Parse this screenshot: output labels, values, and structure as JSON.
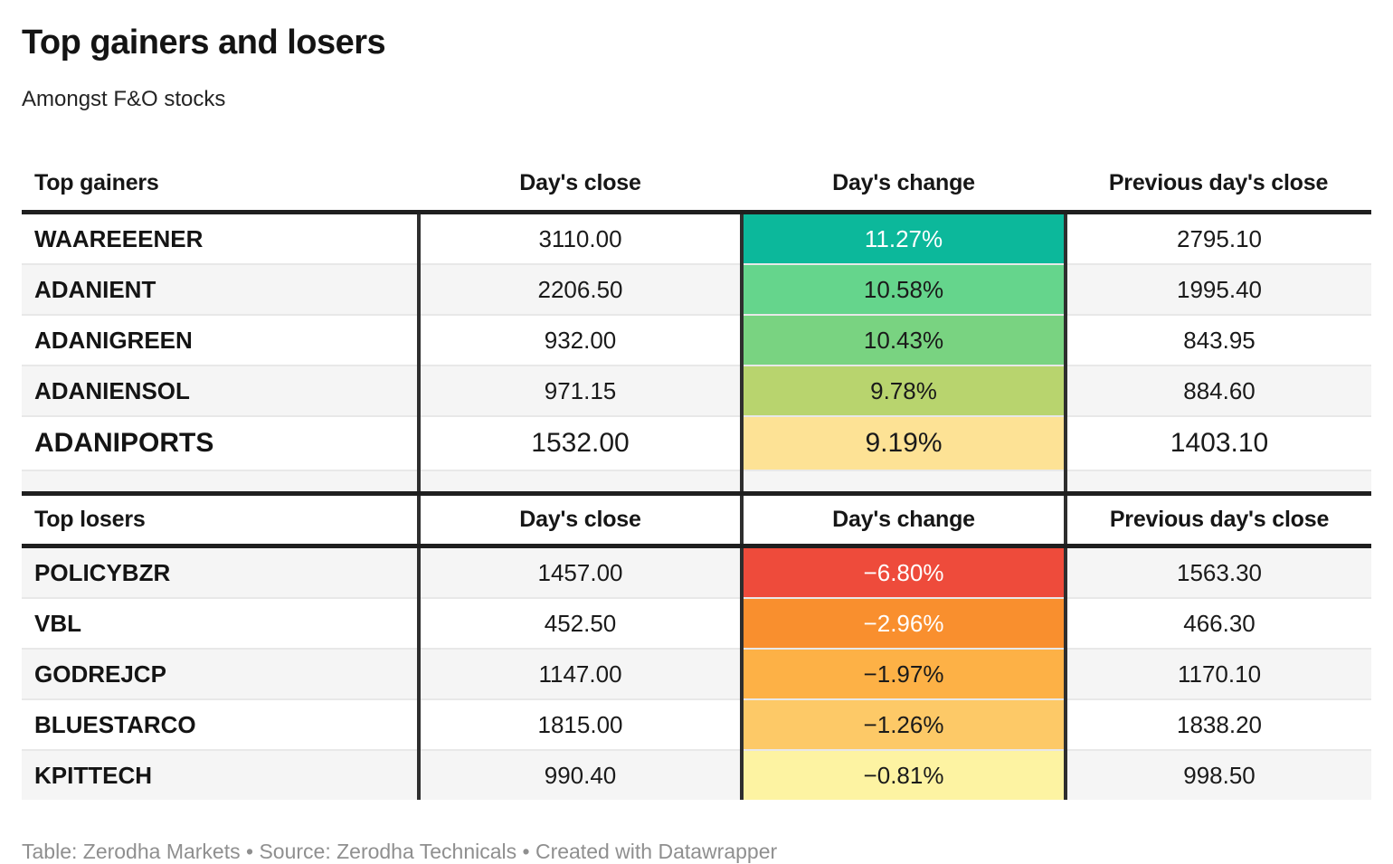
{
  "title": "Top gainers and losers",
  "subtitle": "Amongst F&O stocks",
  "footer": "Table: Zerodha Markets • Source: Zerodha Technicals • Created with Datawrapper",
  "colors": {
    "thick_rule": "#1f1f1f",
    "divider": "#2e2e2e",
    "row_stripe": "#f5f5f5",
    "row_separator": "#e8e8e8",
    "footer_text": "#8f8f8f"
  },
  "gainers": {
    "headers": [
      "Top gainers",
      "Day's close",
      "Day's change",
      "Previous day's close"
    ],
    "rows": [
      {
        "name": "WAAREEENER",
        "close": "3110.00",
        "change": "11.27%",
        "prev": "2795.10",
        "bg": "#0cb89b",
        "fg": "#ffffff"
      },
      {
        "name": "ADANIENT",
        "close": "2206.50",
        "change": "10.58%",
        "prev": "1995.40",
        "bg": "#65d58c",
        "fg": "#1a1a1a"
      },
      {
        "name": "ADANIGREEN",
        "close": "932.00",
        "change": "10.43%",
        "prev": "843.95",
        "bg": "#79d381",
        "fg": "#1a1a1a"
      },
      {
        "name": "ADANIENSOL",
        "close": "971.15",
        "change": "9.78%",
        "prev": "884.60",
        "bg": "#b8d46e",
        "fg": "#1a1a1a"
      },
      {
        "name": "ADANIPORTS",
        "close": "1532.00",
        "change": "9.19%",
        "prev": "1403.10",
        "bg": "#fde295",
        "fg": "#1a1a1a"
      }
    ]
  },
  "losers": {
    "headers": [
      "Top losers",
      "Day's close",
      "Day's change",
      "Previous day's close"
    ],
    "rows": [
      {
        "name": "POLICYBZR",
        "close": "1457.00",
        "change": "−6.80%",
        "prev": "1563.30",
        "bg": "#ee4b3b",
        "fg": "#ffffff"
      },
      {
        "name": "VBL",
        "close": "452.50",
        "change": "−2.96%",
        "prev": "466.30",
        "bg": "#f98f2e",
        "fg": "#ffffff"
      },
      {
        "name": "GODREJCP",
        "close": "1147.00",
        "change": "−1.97%",
        "prev": "1170.10",
        "bg": "#fdb146",
        "fg": "#1a1a1a"
      },
      {
        "name": "BLUESTARCO",
        "close": "1815.00",
        "change": "−1.26%",
        "prev": "1838.20",
        "bg": "#fdc967",
        "fg": "#1a1a1a"
      },
      {
        "name": "KPITTECH",
        "close": "990.40",
        "change": "−0.81%",
        "prev": "998.50",
        "bg": "#fdf3a2",
        "fg": "#1a1a1a"
      }
    ]
  },
  "chart_data": {
    "type": "table",
    "title": "Top gainers and losers",
    "subtitle": "Amongst F&O stocks",
    "tables": [
      {
        "name": "Top gainers",
        "columns": [
          "Top gainers",
          "Day's close",
          "Day's change",
          "Previous day's close"
        ],
        "rows": [
          [
            "WAAREEENER",
            3110.0,
            11.27,
            2795.1
          ],
          [
            "ADANIENT",
            2206.5,
            10.58,
            1995.4
          ],
          [
            "ADANIGREEN",
            932.0,
            10.43,
            843.95
          ],
          [
            "ADANIENSOL",
            971.15,
            9.78,
            884.6
          ],
          [
            "ADANIPORTS",
            1532.0,
            9.19,
            1403.1
          ]
        ],
        "change_unit": "percent",
        "heatmap_column": "Day's change"
      },
      {
        "name": "Top losers",
        "columns": [
          "Top losers",
          "Day's close",
          "Day's change",
          "Previous day's close"
        ],
        "rows": [
          [
            "POLICYBZR",
            1457.0,
            -6.8,
            1563.3
          ],
          [
            "VBL",
            452.5,
            -2.96,
            466.3
          ],
          [
            "GODREJCP",
            1147.0,
            -1.97,
            1170.1
          ],
          [
            "BLUESTARCO",
            1815.0,
            -1.26,
            1838.2
          ],
          [
            "KPITTECH",
            990.4,
            -0.81,
            998.5
          ]
        ],
        "change_unit": "percent",
        "heatmap_column": "Day's change"
      }
    ]
  }
}
